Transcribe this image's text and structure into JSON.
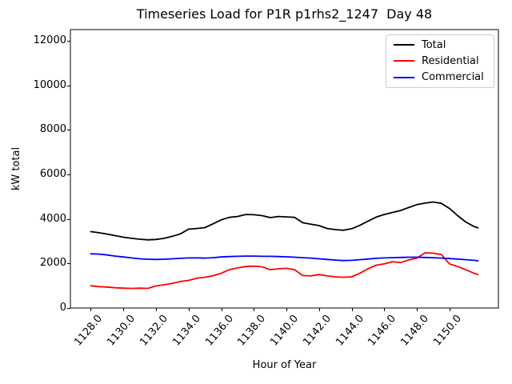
{
  "figure": {
    "title": "Timeseries Load for P1R p1rhs2_1247  Day 48"
  },
  "chart_data": {
    "type": "line",
    "title": "Timeseries Load for P1R p1rhs2_1247  Day 48",
    "xlabel": "Hour of Year",
    "ylabel": "kW total",
    "xlim": [
      1126.75,
      1153.0
    ],
    "ylim": [
      0,
      12500
    ],
    "grid": false,
    "legend_position": "upper right",
    "xticks": [
      1128,
      1130,
      1132,
      1134,
      1136,
      1138,
      1140,
      1142,
      1144,
      1146,
      1148,
      1150
    ],
    "xtick_labels": [
      "1128.0",
      "1130.0",
      "1132.0",
      "1134.0",
      "1136.0",
      "1138.0",
      "1140.0",
      "1142.0",
      "1144.0",
      "1146.0",
      "1148.0",
      "1150.0"
    ],
    "yticks": [
      0,
      2000,
      4000,
      6000,
      8000,
      10000,
      12000
    ],
    "ytick_labels": [
      "0",
      "2000",
      "4000",
      "6000",
      "8000",
      "10000",
      "12000"
    ],
    "x": [
      1128.0,
      1128.5,
      1129.0,
      1129.5,
      1130.0,
      1130.5,
      1131.0,
      1131.5,
      1132.0,
      1132.5,
      1133.0,
      1133.5,
      1134.0,
      1134.5,
      1135.0,
      1135.5,
      1136.0,
      1136.5,
      1137.0,
      1137.5,
      1138.0,
      1138.5,
      1139.0,
      1139.5,
      1140.0,
      1140.5,
      1141.0,
      1141.5,
      1142.0,
      1142.5,
      1143.0,
      1143.5,
      1144.0,
      1144.5,
      1145.0,
      1145.5,
      1146.0,
      1146.5,
      1147.0,
      1147.5,
      1148.0,
      1148.5,
      1149.0,
      1149.5,
      1150.0,
      1150.5,
      1151.0,
      1151.5,
      1151.75
    ],
    "series": [
      {
        "name": "Total",
        "color": "#000000",
        "values": [
          3430,
          3380,
          3320,
          3250,
          3180,
          3130,
          3090,
          3060,
          3080,
          3130,
          3220,
          3330,
          3540,
          3570,
          3610,
          3780,
          3960,
          4070,
          4110,
          4200,
          4190,
          4150,
          4060,
          4110,
          4090,
          4070,
          3830,
          3760,
          3700,
          3570,
          3520,
          3490,
          3560,
          3710,
          3900,
          4080,
          4200,
          4290,
          4380,
          4510,
          4640,
          4710,
          4760,
          4700,
          4470,
          4150,
          3860,
          3660,
          3600
        ]
      },
      {
        "name": "Residential",
        "color": "#ff0000",
        "values": [
          1000,
          960,
          940,
          910,
          890,
          880,
          890,
          880,
          990,
          1040,
          1110,
          1190,
          1240,
          1340,
          1380,
          1450,
          1560,
          1720,
          1800,
          1860,
          1880,
          1850,
          1720,
          1760,
          1780,
          1720,
          1460,
          1440,
          1500,
          1440,
          1400,
          1380,
          1400,
          1560,
          1760,
          1920,
          1980,
          2080,
          2040,
          2160,
          2240,
          2480,
          2460,
          2400,
          1980,
          1860,
          1720,
          1560,
          1500
        ]
      },
      {
        "name": "Commercial",
        "color": "#0000ff",
        "values": [
          2430,
          2420,
          2380,
          2330,
          2290,
          2250,
          2210,
          2190,
          2180,
          2190,
          2210,
          2230,
          2250,
          2250,
          2240,
          2260,
          2290,
          2310,
          2320,
          2330,
          2330,
          2320,
          2320,
          2310,
          2300,
          2280,
          2260,
          2240,
          2210,
          2180,
          2150,
          2130,
          2140,
          2170,
          2200,
          2230,
          2250,
          2260,
          2270,
          2280,
          2280,
          2270,
          2260,
          2240,
          2220,
          2200,
          2170,
          2140,
          2120
        ]
      }
    ]
  }
}
